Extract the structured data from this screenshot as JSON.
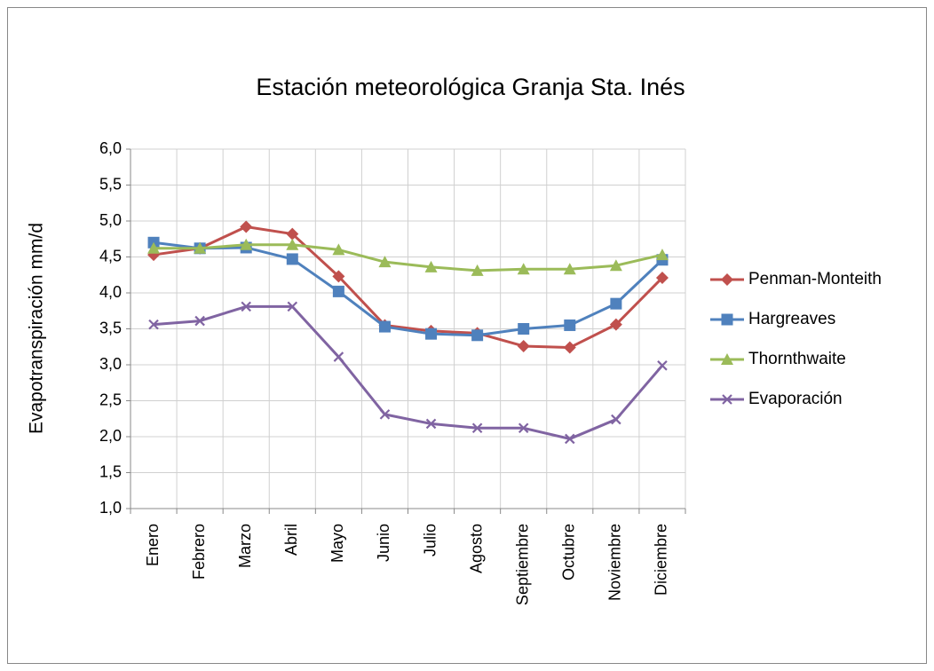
{
  "chart_data": {
    "type": "line",
    "title": "Estación meteorológica Granja Sta. Inés",
    "y_label": "Evapotranspiración  mm/d",
    "categories": [
      "Enero",
      "Febrero",
      "Marzo",
      "Abril",
      "Mayo",
      "Junio",
      "Julio",
      "Agosto",
      "Septiembre",
      "Octubre",
      "Noviembre",
      "Diciembre"
    ],
    "series": [
      {
        "name": "Penman-Monteith",
        "color": "#C0504D",
        "marker": "diamond",
        "values": [
          4.53,
          4.62,
          4.92,
          4.82,
          4.23,
          3.55,
          3.47,
          3.44,
          3.26,
          3.24,
          3.56,
          4.21
        ]
      },
      {
        "name": "Hargreaves",
        "color": "#4F81BD",
        "marker": "square",
        "values": [
          4.7,
          4.62,
          4.63,
          4.47,
          4.02,
          3.53,
          3.43,
          3.41,
          3.5,
          3.55,
          3.85,
          4.46
        ]
      },
      {
        "name": "Thornthwaite",
        "color": "#9BBB59",
        "marker": "triangle",
        "values": [
          4.62,
          4.62,
          4.67,
          4.67,
          4.6,
          4.43,
          4.36,
          4.31,
          4.33,
          4.33,
          4.38,
          4.53
        ]
      },
      {
        "name": "Evaporación",
        "color": "#8064A2",
        "marker": "x",
        "values": [
          3.56,
          3.61,
          3.81,
          3.81,
          3.11,
          2.31,
          2.18,
          2.12,
          2.12,
          1.97,
          2.24,
          2.99
        ]
      }
    ],
    "ylim": [
      1,
      6
    ],
    "yticks": [
      {
        "value": 1,
        "label": "1,0"
      },
      {
        "value": 1.5,
        "label": "1,5"
      },
      {
        "value": 2,
        "label": "2,0"
      },
      {
        "value": 2.5,
        "label": "2,5"
      },
      {
        "value": 3,
        "label": "3,0"
      },
      {
        "value": 3.5,
        "label": "3,5"
      },
      {
        "value": 4,
        "label": "4,0"
      },
      {
        "value": 4.5,
        "label": "4,5"
      },
      {
        "value": 5,
        "label": "5,0"
      },
      {
        "value": 5.5,
        "label": "5,5"
      },
      {
        "value": 6,
        "label": "6,0"
      }
    ],
    "grid": true,
    "legend": "right"
  }
}
